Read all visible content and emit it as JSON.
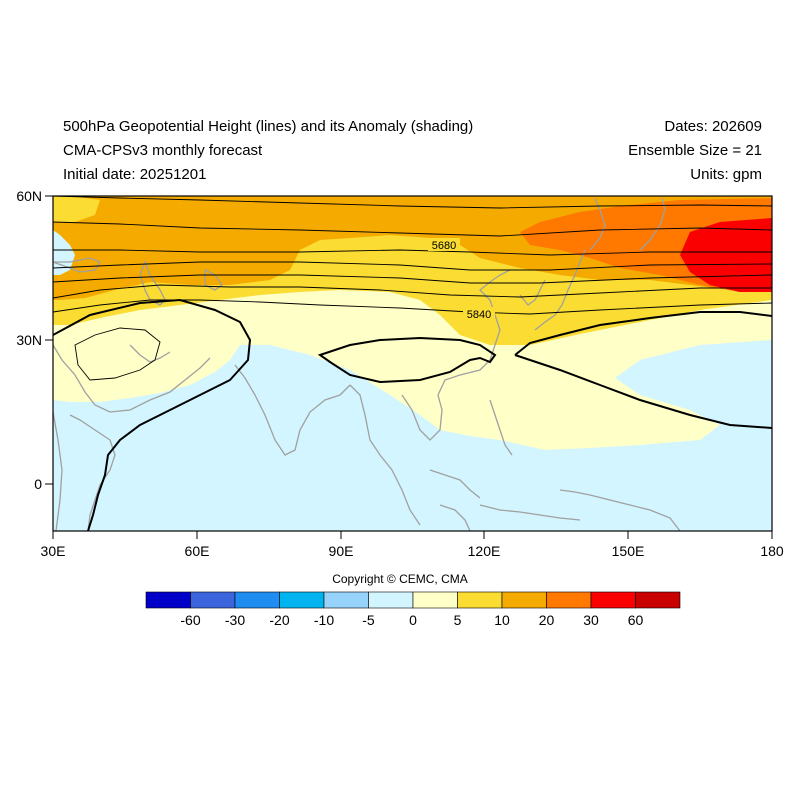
{
  "header": {
    "title_line1": "500hPa Geopotential Height (lines) and its Anomaly (shading)",
    "title_line2": "CMA-CPSv3 monthly forecast",
    "title_line3": "Initial date: 20251201",
    "dates": "Dates: 202609",
    "ensemble": "Ensemble Size = 21",
    "units": "Units: gpm"
  },
  "map": {
    "lat_ticks": [
      "60N",
      "30N",
      "0"
    ],
    "lon_ticks": [
      "30E",
      "60E",
      "90E",
      "120E",
      "150E",
      "180"
    ],
    "contour_labels": [
      "5680",
      "5840"
    ]
  },
  "colorbar": {
    "labels": [
      "-60",
      "-30",
      "-20",
      "-10",
      "-5",
      "0",
      "5",
      "10",
      "20",
      "30",
      "60"
    ],
    "colors": [
      "#0000c8",
      "#3c64dc",
      "#1e8cf0",
      "#00b4f0",
      "#96d2fa",
      "#d2f5ff",
      "#ffffc8",
      "#fadc32",
      "#f5aa00",
      "#ff7800",
      "#fa0000",
      "#c80000"
    ]
  },
  "copyright": "Copyright © CEMC, CMA"
}
